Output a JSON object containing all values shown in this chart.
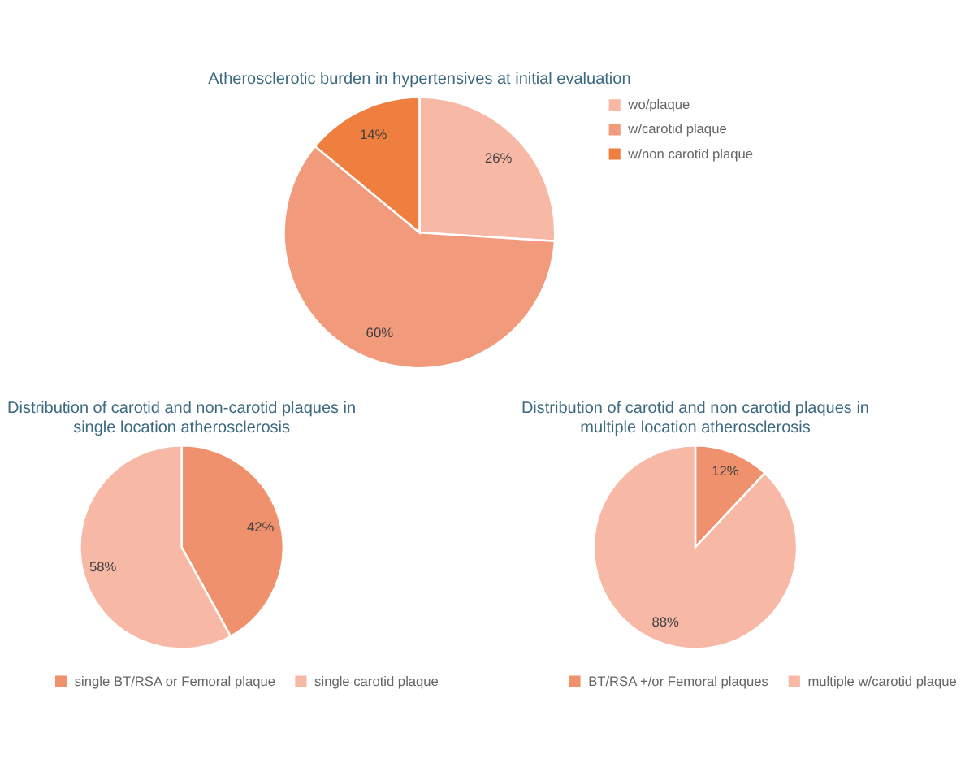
{
  "chart_data": [
    {
      "type": "pie",
      "title": "Atherosclerotic burden in hypertensives at initial evaluation",
      "categories": [
        "wo/plaque",
        "w/carotid plaque",
        "w/non carotid plaque"
      ],
      "values": [
        26,
        60,
        14
      ],
      "colors": [
        "#f7b9a5",
        "#f29b7c",
        "#ef7f3e"
      ],
      "value_labels": [
        "26%",
        "60%",
        "14%"
      ],
      "legend": "right"
    },
    {
      "type": "pie",
      "title": "Distribution of carotid and non-carotid plaques in single location atherosclerosis",
      "categories": [
        "single BT/RSA or Femoral plaque",
        "single carotid plaque"
      ],
      "values": [
        42,
        58
      ],
      "colors": [
        "#f0916d",
        "#f7b9a5"
      ],
      "value_labels": [
        "42%",
        "58%"
      ],
      "legend": "bottom"
    },
    {
      "type": "pie",
      "title": "Distribution of carotid and non carotid plaques in multiple location atherosclerosis",
      "categories": [
        "BT/RSA +/or Femoral plaques",
        "multiple w/carotid plaque"
      ],
      "values": [
        12,
        88
      ],
      "colors": [
        "#f0916d",
        "#f7b9a5"
      ],
      "value_labels": [
        "12%",
        "88%"
      ],
      "legend": "bottom"
    }
  ]
}
